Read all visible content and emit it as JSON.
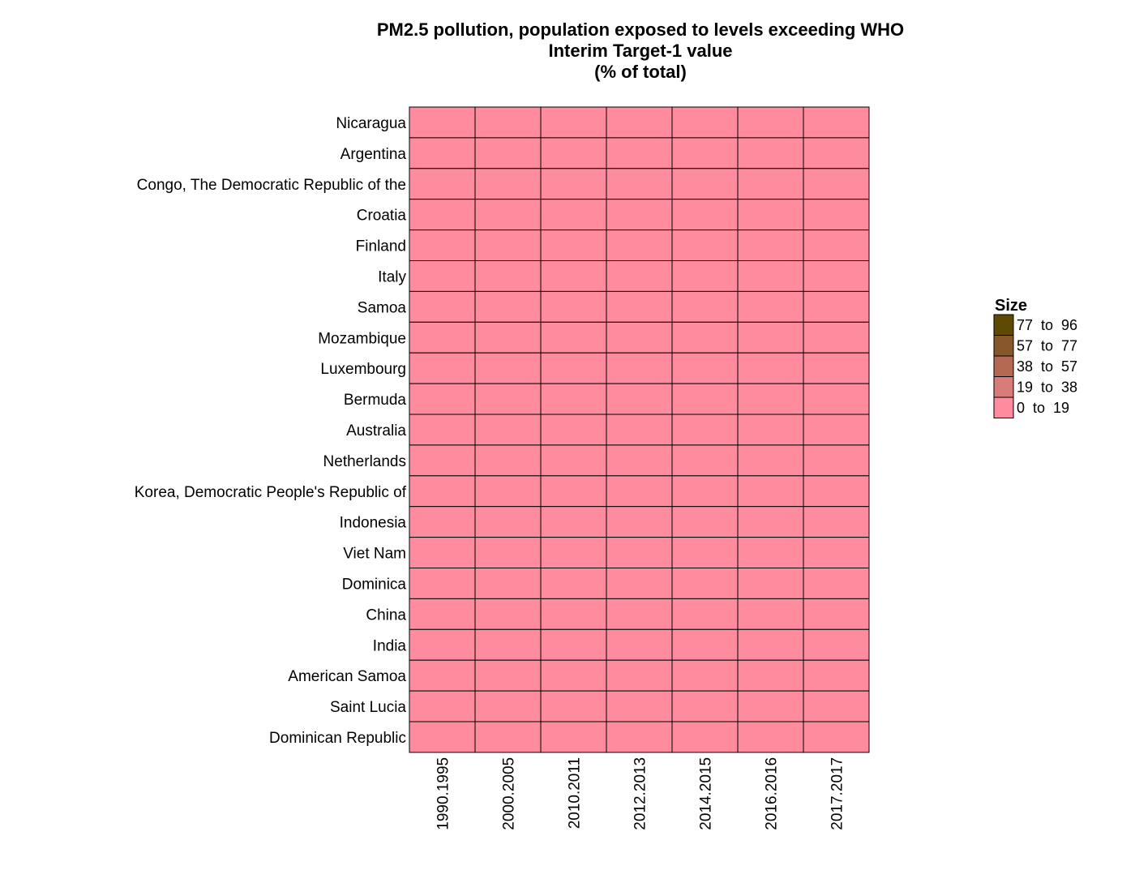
{
  "chart_data": {
    "type": "heatmap",
    "title": [
      "PM2.5 pollution, population exposed to levels exceeding WHO",
      "Interim Target-1 value",
      "(% of total)"
    ],
    "columns": [
      "1990.1995",
      "2000.2005",
      "2010.2011",
      "2012.2013",
      "2014.2015",
      "2016.2016",
      "2017.2017"
    ],
    "rows": [
      "Nicaragua",
      "Argentina",
      "Congo, The Democratic Republic of the",
      "Croatia",
      "Finland",
      "Italy",
      "Samoa",
      "Mozambique",
      "Luxembourg",
      "Bermuda",
      "Australia",
      "Netherlands",
      "Korea, Democratic People's Republic of",
      "Indonesia",
      "Viet Nam",
      "Dominica",
      "China",
      "India",
      "American Samoa",
      "Saint Lucia",
      "Dominican Republic"
    ],
    "values": [
      [
        0,
        0,
        0,
        0,
        0,
        0,
        0
      ],
      [
        0,
        0,
        0,
        0,
        0,
        0,
        0
      ],
      [
        0,
        0,
        0,
        0,
        0,
        0,
        0
      ],
      [
        0,
        0,
        0,
        0,
        0,
        0,
        0
      ],
      [
        0,
        0,
        0,
        0,
        0,
        0,
        0
      ],
      [
        0,
        0,
        0,
        0,
        0,
        0,
        0
      ],
      [
        0,
        0,
        0,
        0,
        0,
        0,
        0
      ],
      [
        0,
        0,
        0,
        0,
        0,
        0,
        0
      ],
      [
        0,
        0,
        0,
        0,
        0,
        0,
        0
      ],
      [
        0,
        0,
        0,
        0,
        0,
        0,
        0
      ],
      [
        0,
        0,
        0,
        0,
        0,
        0,
        0
      ],
      [
        0,
        0,
        0,
        0,
        0,
        0,
        0
      ],
      [
        0,
        0,
        0,
        0,
        0,
        0,
        0
      ],
      [
        0,
        0,
        0,
        0,
        0,
        0,
        0
      ],
      [
        0,
        0,
        0,
        0,
        0,
        0,
        0
      ],
      [
        0,
        0,
        0,
        0,
        0,
        0,
        0
      ],
      [
        0,
        0,
        0,
        0,
        0,
        0,
        0
      ],
      [
        0,
        0,
        0,
        0,
        0,
        0,
        0
      ],
      [
        0,
        0,
        0,
        0,
        0,
        0,
        0
      ],
      [
        0,
        0,
        0,
        0,
        0,
        0,
        0
      ],
      [
        0,
        0,
        0,
        0,
        0,
        0,
        0
      ]
    ],
    "legend": {
      "title": "Size",
      "position": "right",
      "bins": [
        {
          "label": "77  to  96",
          "color": "#5e4a03"
        },
        {
          "label": "57  to  77",
          "color": "#87572c"
        },
        {
          "label": "38  to  57",
          "color": "#b46a52"
        },
        {
          "label": "19  to  38",
          "color": "#d77c78"
        },
        {
          "label": "0  to  19",
          "color": "#ff8c9e"
        }
      ]
    }
  }
}
